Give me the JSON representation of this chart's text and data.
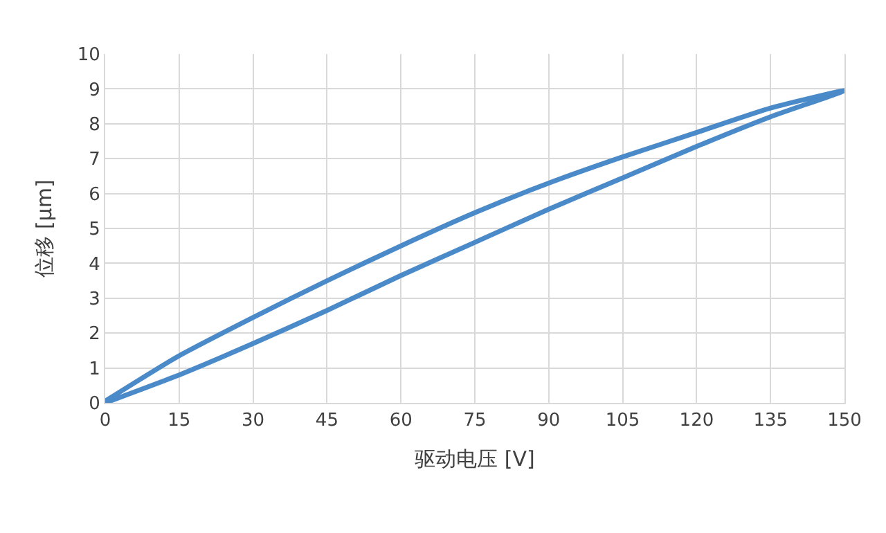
{
  "chart_data": {
    "type": "line",
    "xlabel": "驱动电压 [V]",
    "ylabel": "位移 [μm]",
    "xlim": [
      0,
      150
    ],
    "ylim": [
      0,
      10
    ],
    "xticks": [
      0,
      15,
      30,
      45,
      60,
      75,
      90,
      105,
      120,
      135,
      150
    ],
    "yticks": [
      0,
      1,
      2,
      3,
      4,
      5,
      6,
      7,
      8,
      9,
      10
    ],
    "grid": true,
    "marker": "none",
    "line_style": "solid",
    "series": [
      {
        "color": "#4a8ac9",
        "x": [
          0,
          15,
          30,
          45,
          60,
          75,
          90,
          105,
          120,
          135,
          150,
          135,
          120,
          105,
          90,
          75,
          60,
          45,
          30,
          15,
          0
        ],
        "values": [
          0,
          0.8,
          1.7,
          2.65,
          3.65,
          4.6,
          5.55,
          6.45,
          7.35,
          8.2,
          8.95,
          8.45,
          7.75,
          7.05,
          6.3,
          5.45,
          4.5,
          3.5,
          2.45,
          1.35,
          0.05
        ]
      }
    ]
  }
}
